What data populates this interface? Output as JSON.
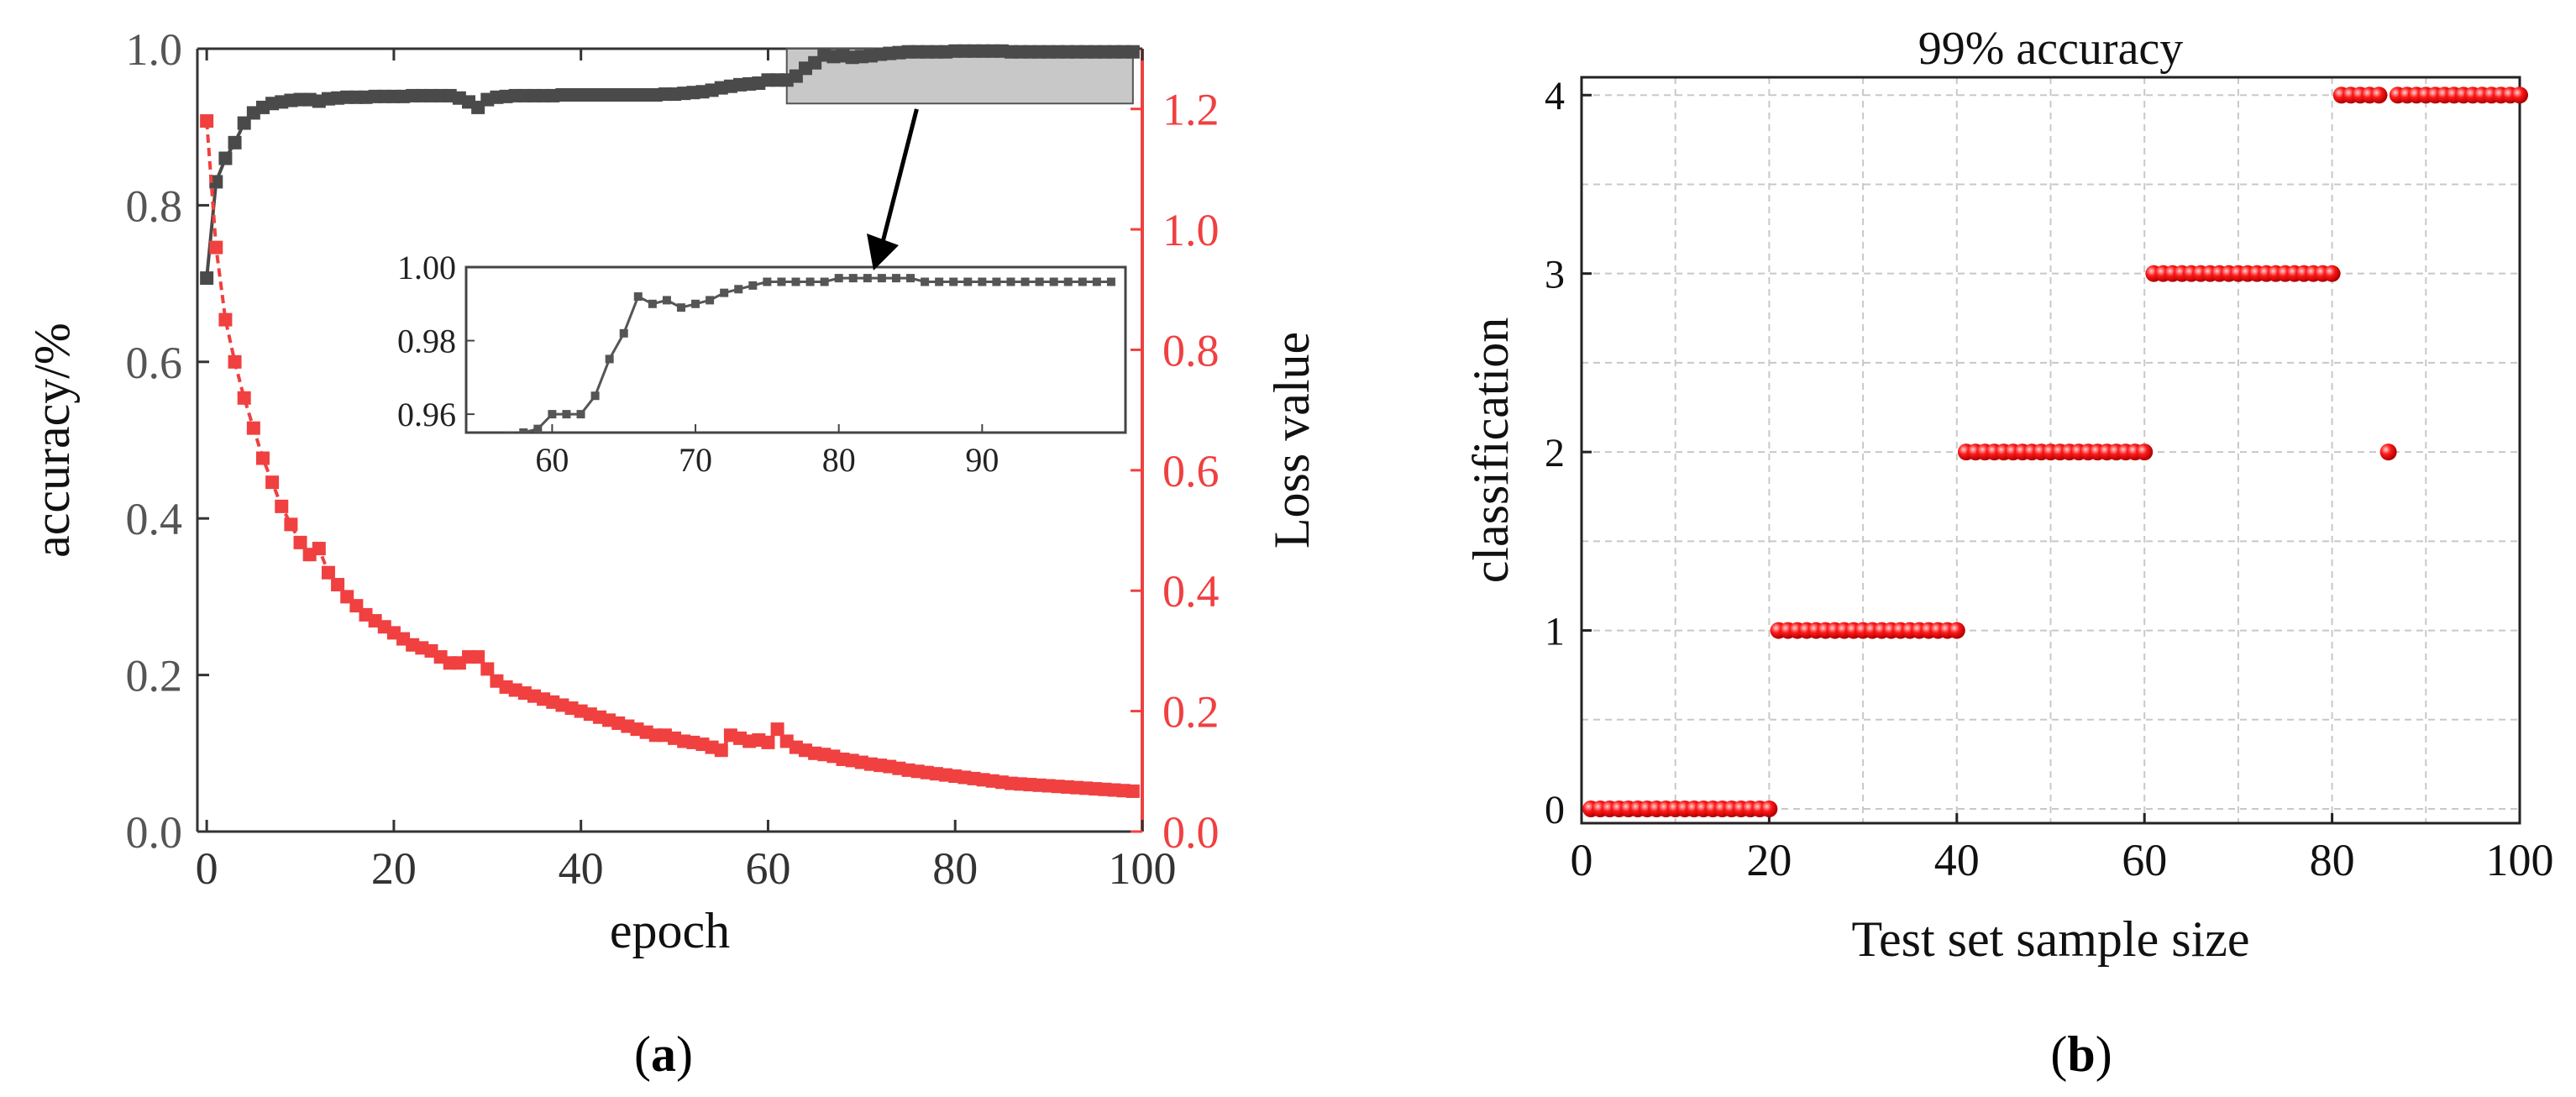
{
  "panels": {
    "a": {
      "label_open": "(",
      "label_letter": "a",
      "label_close": ")"
    },
    "b": {
      "label_open": "(",
      "label_letter": "b",
      "label_close": ")"
    }
  },
  "colors": {
    "accuracy": "#4a4a4a",
    "loss": "#f04040",
    "scatter": "#ff1a1a",
    "grid": "#c8c8c8",
    "inset_box": "#c8c8c8"
  },
  "chart_data": [
    {
      "id": "a",
      "type": "line",
      "xlabel": "epoch",
      "ylabel_left": "accuracy/%",
      "ylabel_right": "Loss value",
      "xlim": [
        -1,
        100
      ],
      "ylim_left": [
        0,
        1.0
      ],
      "ylim_right": [
        0,
        1.3
      ],
      "xticks": [
        "0",
        "20",
        "40",
        "60",
        "80",
        "100"
      ],
      "yticks_left": [
        "0.0",
        "0.2",
        "0.4",
        "0.6",
        "0.8",
        "1.0"
      ],
      "yticks_right": [
        "0.0",
        "0.2",
        "0.4",
        "0.6",
        "0.8",
        "1.0",
        "1.2"
      ],
      "series": [
        {
          "name": "accuracy",
          "axis": "left",
          "x": [
            0,
            1,
            2,
            3,
            4,
            5,
            6,
            7,
            8,
            9,
            10,
            11,
            12,
            13,
            14,
            15,
            16,
            17,
            18,
            19,
            20,
            21,
            22,
            23,
            24,
            25,
            26,
            27,
            28,
            29,
            30,
            31,
            32,
            33,
            34,
            35,
            36,
            37,
            38,
            39,
            40,
            41,
            42,
            43,
            44,
            45,
            46,
            47,
            48,
            49,
            50,
            51,
            52,
            53,
            54,
            55,
            56,
            57,
            58,
            59,
            60,
            61,
            62,
            63,
            64,
            65,
            66,
            67,
            68,
            69,
            70,
            71,
            72,
            73,
            74,
            75,
            76,
            77,
            78,
            79,
            80,
            81,
            82,
            83,
            84,
            85,
            86,
            87,
            88,
            89,
            90,
            91,
            92,
            93,
            94,
            95,
            96,
            97,
            98,
            99
          ],
          "values": [
            0.707,
            0.83,
            0.86,
            0.88,
            0.905,
            0.918,
            0.925,
            0.93,
            0.932,
            0.934,
            0.935,
            0.935,
            0.933,
            0.936,
            0.937,
            0.938,
            0.938,
            0.938,
            0.939,
            0.939,
            0.939,
            0.939,
            0.94,
            0.94,
            0.94,
            0.94,
            0.94,
            0.937,
            0.932,
            0.925,
            0.935,
            0.938,
            0.939,
            0.94,
            0.94,
            0.94,
            0.94,
            0.94,
            0.941,
            0.941,
            0.941,
            0.941,
            0.941,
            0.941,
            0.941,
            0.941,
            0.941,
            0.941,
            0.941,
            0.942,
            0.942,
            0.943,
            0.944,
            0.945,
            0.947,
            0.95,
            0.952,
            0.954,
            0.955,
            0.956,
            0.96,
            0.96,
            0.96,
            0.965,
            0.975,
            0.982,
            0.992,
            0.99,
            0.991,
            0.989,
            0.99,
            0.991,
            0.993,
            0.994,
            0.995,
            0.996,
            0.996,
            0.996,
            0.996,
            0.996,
            0.997,
            0.997,
            0.997,
            0.997,
            0.997,
            0.997,
            0.996,
            0.996,
            0.996,
            0.996,
            0.996,
            0.996,
            0.996,
            0.996,
            0.996,
            0.996,
            0.996,
            0.996,
            0.996,
            0.996
          ]
        },
        {
          "name": "loss",
          "axis": "right",
          "x": [
            0,
            1,
            2,
            3,
            4,
            5,
            6,
            7,
            8,
            9,
            10,
            11,
            12,
            13,
            14,
            15,
            16,
            17,
            18,
            19,
            20,
            21,
            22,
            23,
            24,
            25,
            26,
            27,
            28,
            29,
            30,
            31,
            32,
            33,
            34,
            35,
            36,
            37,
            38,
            39,
            40,
            41,
            42,
            43,
            44,
            45,
            46,
            47,
            48,
            49,
            50,
            51,
            52,
            53,
            54,
            55,
            56,
            57,
            58,
            59,
            60,
            61,
            62,
            63,
            64,
            65,
            66,
            67,
            68,
            69,
            70,
            71,
            72,
            73,
            74,
            75,
            76,
            77,
            78,
            79,
            80,
            81,
            82,
            83,
            84,
            85,
            86,
            87,
            88,
            89,
            90,
            91,
            92,
            93,
            94,
            95,
            96,
            97,
            98,
            99
          ],
          "values": [
            1.18,
            0.97,
            0.85,
            0.78,
            0.72,
            0.67,
            0.62,
            0.58,
            0.54,
            0.51,
            0.48,
            0.46,
            0.47,
            0.43,
            0.41,
            0.39,
            0.375,
            0.36,
            0.35,
            0.34,
            0.33,
            0.32,
            0.31,
            0.305,
            0.3,
            0.29,
            0.28,
            0.28,
            0.29,
            0.29,
            0.27,
            0.25,
            0.24,
            0.235,
            0.23,
            0.225,
            0.22,
            0.215,
            0.21,
            0.205,
            0.2,
            0.195,
            0.19,
            0.185,
            0.18,
            0.175,
            0.17,
            0.165,
            0.16,
            0.16,
            0.155,
            0.15,
            0.148,
            0.145,
            0.14,
            0.135,
            0.16,
            0.155,
            0.15,
            0.152,
            0.148,
            0.17,
            0.15,
            0.14,
            0.135,
            0.13,
            0.128,
            0.125,
            0.12,
            0.118,
            0.115,
            0.112,
            0.11,
            0.108,
            0.105,
            0.102,
            0.1,
            0.098,
            0.096,
            0.094,
            0.092,
            0.09,
            0.088,
            0.086,
            0.084,
            0.082,
            0.08,
            0.079,
            0.078,
            0.077,
            0.076,
            0.075,
            0.074,
            0.073,
            0.072,
            0.071,
            0.07,
            0.069,
            0.068,
            0.067
          ]
        }
      ],
      "inset": {
        "xlim": [
          54,
          100
        ],
        "ylim": [
          0.955,
          1.0
        ],
        "xticks": [
          "60",
          "70",
          "80",
          "90"
        ],
        "yticks": [
          "0.96",
          "0.98",
          "1.00"
        ],
        "zoom_region": {
          "x": [
            62,
            99
          ],
          "y": [
            0.93,
            1.0
          ]
        }
      }
    },
    {
      "id": "b",
      "type": "scatter",
      "title": "99% accuracy",
      "xlabel": "Test set sample size",
      "ylabel": "classification",
      "xlim": [
        0,
        100
      ],
      "ylim": [
        -0.08,
        4.1
      ],
      "xticks": [
        "0",
        "20",
        "40",
        "60",
        "80",
        "100"
      ],
      "yticks": [
        "0",
        "1",
        "2",
        "3",
        "4"
      ],
      "grid": true,
      "groups": [
        {
          "class": 0,
          "x_from": 1,
          "x_to": 20
        },
        {
          "class": 1,
          "x_from": 21,
          "x_to": 40
        },
        {
          "class": 2,
          "x_from": 41,
          "x_to": 60
        },
        {
          "class": 3,
          "x_from": 61,
          "x_to": 80
        },
        {
          "class": 4,
          "x_from": 81,
          "x_to": 85
        },
        {
          "class": 2,
          "x_from": 86,
          "x_to": 86
        },
        {
          "class": 4,
          "x_from": 87,
          "x_to": 100
        }
      ]
    }
  ]
}
